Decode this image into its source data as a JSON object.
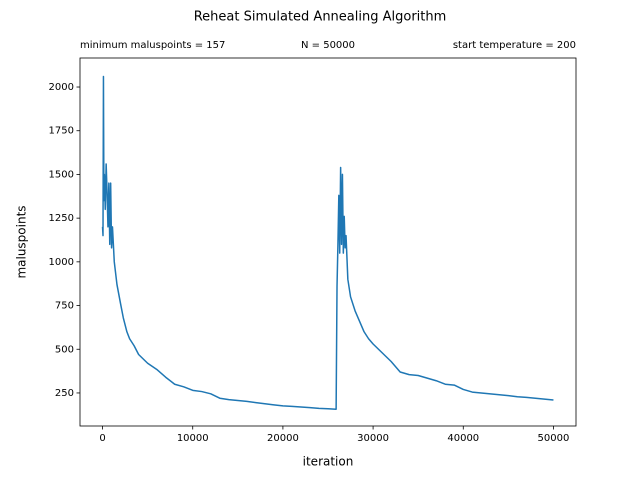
{
  "chart_data": {
    "type": "line",
    "title": "Reheat Simulated Annealing Algorithm",
    "annotations": [
      "minimum maluspoints = 157",
      "N = 50000",
      "start temperature = 200"
    ],
    "xlabel": "iteration",
    "ylabel": "maluspoints",
    "color": "#1f77b4",
    "xlim": [
      -2500,
      52500
    ],
    "xticks": [
      0,
      10000,
      20000,
      30000,
      40000,
      50000
    ],
    "ylim": [
      61,
      2166
    ],
    "yticks": [
      250,
      500,
      750,
      1000,
      1250,
      1500,
      1750,
      2000
    ],
    "x": [
      0,
      50,
      100,
      150,
      200,
      300,
      400,
      500,
      600,
      700,
      800,
      900,
      1000,
      1100,
      1300,
      1600,
      2000,
      2300,
      2700,
      3000,
      3500,
      4000,
      5000,
      6000,
      7000,
      8000,
      9000,
      10000,
      11000,
      12000,
      13000,
      14000,
      15000,
      16000,
      17000,
      18000,
      19000,
      20000,
      21000,
      22000,
      23000,
      24000,
      25000,
      25900,
      26000,
      26100,
      26200,
      26300,
      26400,
      26500,
      26600,
      26700,
      26800,
      26900,
      27000,
      27200,
      27500,
      28000,
      28500,
      29000,
      29500,
      30000,
      31000,
      32000,
      33000,
      34000,
      35000,
      36000,
      37000,
      38000,
      39000,
      40000,
      41000,
      42000,
      43000,
      44000,
      45000,
      46000,
      47000,
      48000,
      49000,
      50000
    ],
    "values": [
      1200,
      1150,
      2060,
      1350,
      1500,
      1300,
      1560,
      1400,
      1200,
      1450,
      1100,
      1450,
      1080,
      1200,
      1000,
      870,
      760,
      680,
      600,
      560,
      520,
      470,
      420,
      385,
      340,
      300,
      285,
      265,
      258,
      245,
      220,
      212,
      207,
      202,
      195,
      188,
      182,
      176,
      173,
      170,
      166,
      162,
      160,
      157,
      860,
      1100,
      1380,
      1050,
      1540,
      1100,
      1500,
      1050,
      1260,
      1080,
      1150,
      900,
      800,
      720,
      660,
      600,
      560,
      530,
      480,
      430,
      370,
      355,
      350,
      335,
      320,
      300,
      295,
      270,
      255,
      250,
      245,
      240,
      235,
      228,
      225,
      220,
      215,
      210
    ]
  }
}
